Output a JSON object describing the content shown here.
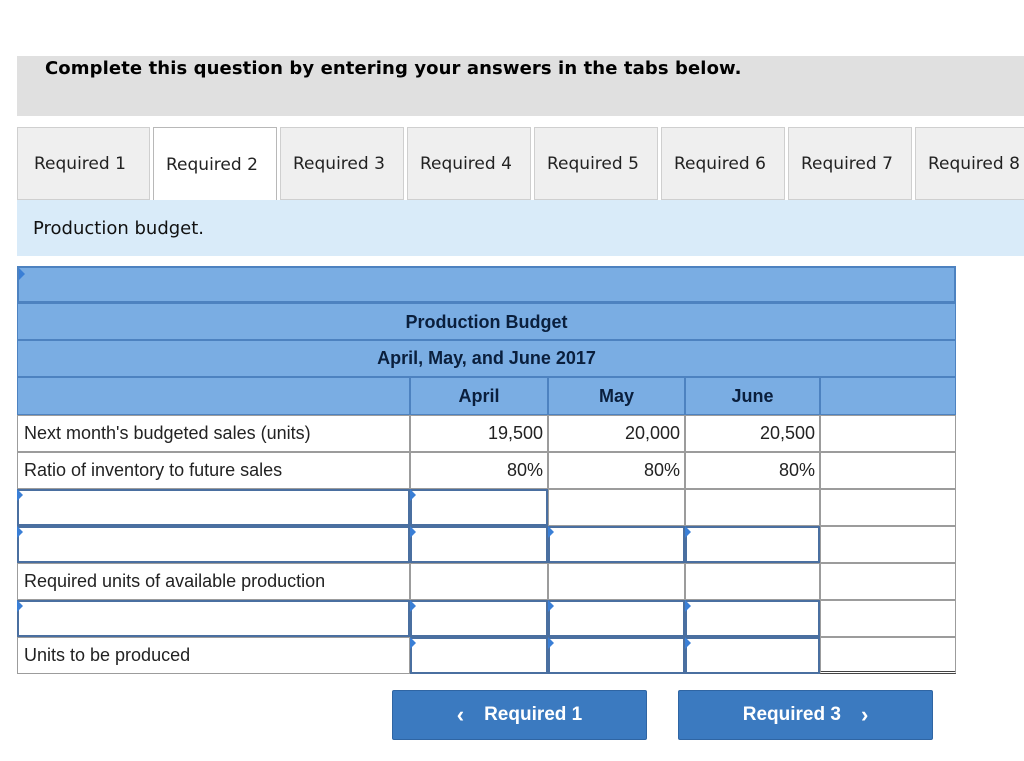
{
  "instruction": "Complete this question by entering your answers in the tabs below.",
  "tabs": [
    {
      "label": "Required 1",
      "active": false
    },
    {
      "label": "Required 2",
      "active": true
    },
    {
      "label": "Required 3",
      "active": false
    },
    {
      "label": "Required 4",
      "active": false
    },
    {
      "label": "Required 5",
      "active": false
    },
    {
      "label": "Required 6",
      "active": false
    },
    {
      "label": "Required 7",
      "active": false
    },
    {
      "label": "Required 8",
      "active": false
    }
  ],
  "panel": {
    "heading": "Production budget."
  },
  "budget": {
    "title": "Production Budget",
    "subtitle": "April, May, and June 2017",
    "columns": [
      "April",
      "May",
      "June"
    ],
    "rows": {
      "next_month_sales": {
        "label": "Next month's budgeted sales (units)",
        "values": [
          "19,500",
          "20,000",
          "20,500"
        ]
      },
      "ratio": {
        "label": "Ratio of inventory to future sales",
        "values": [
          "80%",
          "80%",
          "80%"
        ]
      },
      "input_row_1": {
        "label": "",
        "values": [
          "",
          "",
          ""
        ]
      },
      "input_row_2": {
        "label": "",
        "values": [
          "",
          "",
          ""
        ]
      },
      "required_units": {
        "label": "Required units of available production",
        "values": [
          "",
          "",
          ""
        ]
      },
      "input_row_3": {
        "label": "",
        "values": [
          "",
          "",
          ""
        ]
      },
      "units_produced": {
        "label": "Units to be produced",
        "values": [
          "",
          "",
          ""
        ]
      }
    }
  },
  "nav": {
    "prev_label": "Required 1",
    "next_label": "Required 3",
    "prev_icon": "chevron-left-icon",
    "next_icon": "chevron-right-icon"
  }
}
